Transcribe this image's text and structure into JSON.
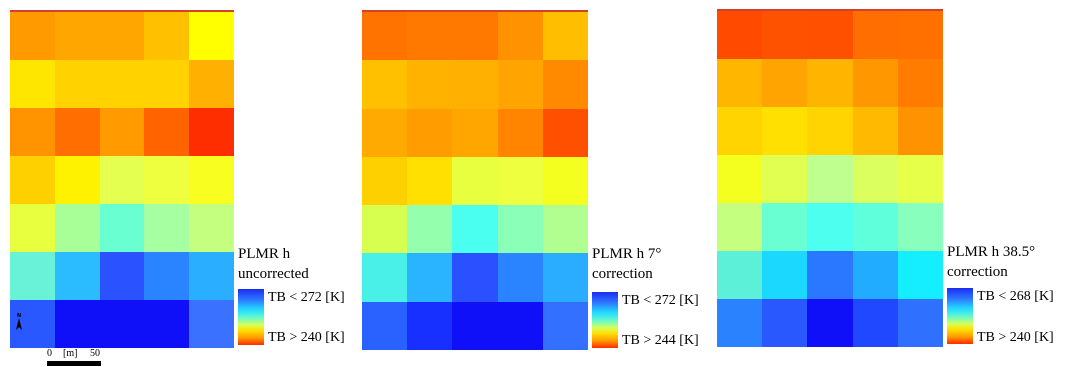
{
  "panels": [
    {
      "title_line1": "PLMR h",
      "title_line2": "uncorrected",
      "legend_low": "TB < 272 [K]",
      "legend_high": "TB > 240 [K]",
      "grid_colors": [
        [
          "#ff9a00",
          "#ffa600",
          "#ffa600",
          "#ffc000",
          "#ffff00"
        ],
        [
          "#ffe600",
          "#ffd200",
          "#ffd200",
          "#ffd200",
          "#ffb000"
        ],
        [
          "#ff9400",
          "#ff6e00",
          "#ff9a00",
          "#ff6400",
          "#ff2e00"
        ],
        [
          "#ffd000",
          "#fff200",
          "#e4ff50",
          "#eeff40",
          "#f8ff20"
        ],
        [
          "#e8ff40",
          "#a8ff98",
          "#6affd0",
          "#a6ffa0",
          "#c4ff80"
        ],
        [
          "#6af2d8",
          "#2abcff",
          "#2a52ff",
          "#2a84ff",
          "#2aaeff"
        ],
        [
          "#2a58ff",
          "#1010f8",
          "#1010f8",
          "#1010f8",
          "#3a72ff"
        ]
      ]
    },
    {
      "title_line1": "PLMR h 7°",
      "title_line2": "correction",
      "legend_low": "TB < 272 [K]",
      "legend_high": "TB > 244 [K]",
      "grid_colors": [
        [
          "#ff7400",
          "#ff7800",
          "#ff7800",
          "#ff9200",
          "#ffbe00"
        ],
        [
          "#ffc000",
          "#ffb200",
          "#ffb000",
          "#ffa400",
          "#ff8a00"
        ],
        [
          "#ffaa00",
          "#ff9c00",
          "#ffa600",
          "#ff8400",
          "#ff5000"
        ],
        [
          "#ffd000",
          "#ffe000",
          "#e8ff40",
          "#eeff40",
          "#f4ff20"
        ],
        [
          "#d6ff50",
          "#94ffac",
          "#4afff0",
          "#8affb8",
          "#b0ff90"
        ],
        [
          "#48f0e8",
          "#2ab4ff",
          "#2a50ff",
          "#2a84ff",
          "#2aacff"
        ],
        [
          "#2a62ff",
          "#1830ff",
          "#1010f8",
          "#1010f8",
          "#3470ff"
        ]
      ]
    },
    {
      "title_line1": "PLMR h 38.5°",
      "title_line2": "correction",
      "legend_low": "TB < 268 [K]",
      "legend_high": "TB > 240 [K]",
      "grid_colors": [
        [
          "#ff4a00",
          "#ff5200",
          "#ff5000",
          "#ff6e00",
          "#ff7000"
        ],
        [
          "#ffb600",
          "#ffa400",
          "#ffb400",
          "#ff9800",
          "#ff7c00"
        ],
        [
          "#ffd400",
          "#ffe000",
          "#ffd400",
          "#ffba00",
          "#ff9200"
        ],
        [
          "#f4ff20",
          "#e0ff50",
          "#beff90",
          "#dcff60",
          "#e6ff48"
        ],
        [
          "#c4ff80",
          "#6affd2",
          "#4cffee",
          "#5effda",
          "#88ffbc"
        ],
        [
          "#5cf0d8",
          "#1ad8ff",
          "#2a78ff",
          "#22acff",
          "#14eeff"
        ],
        [
          "#2a82ff",
          "#2a58ff",
          "#1010f8",
          "#2048ff",
          "#3070ff"
        ]
      ]
    }
  ],
  "map_furniture": {
    "north_arrow_icon": "north-arrow-icon",
    "scale_label_zero": "0",
    "scale_label_unit": "[m]",
    "scale_label_end": "50"
  }
}
